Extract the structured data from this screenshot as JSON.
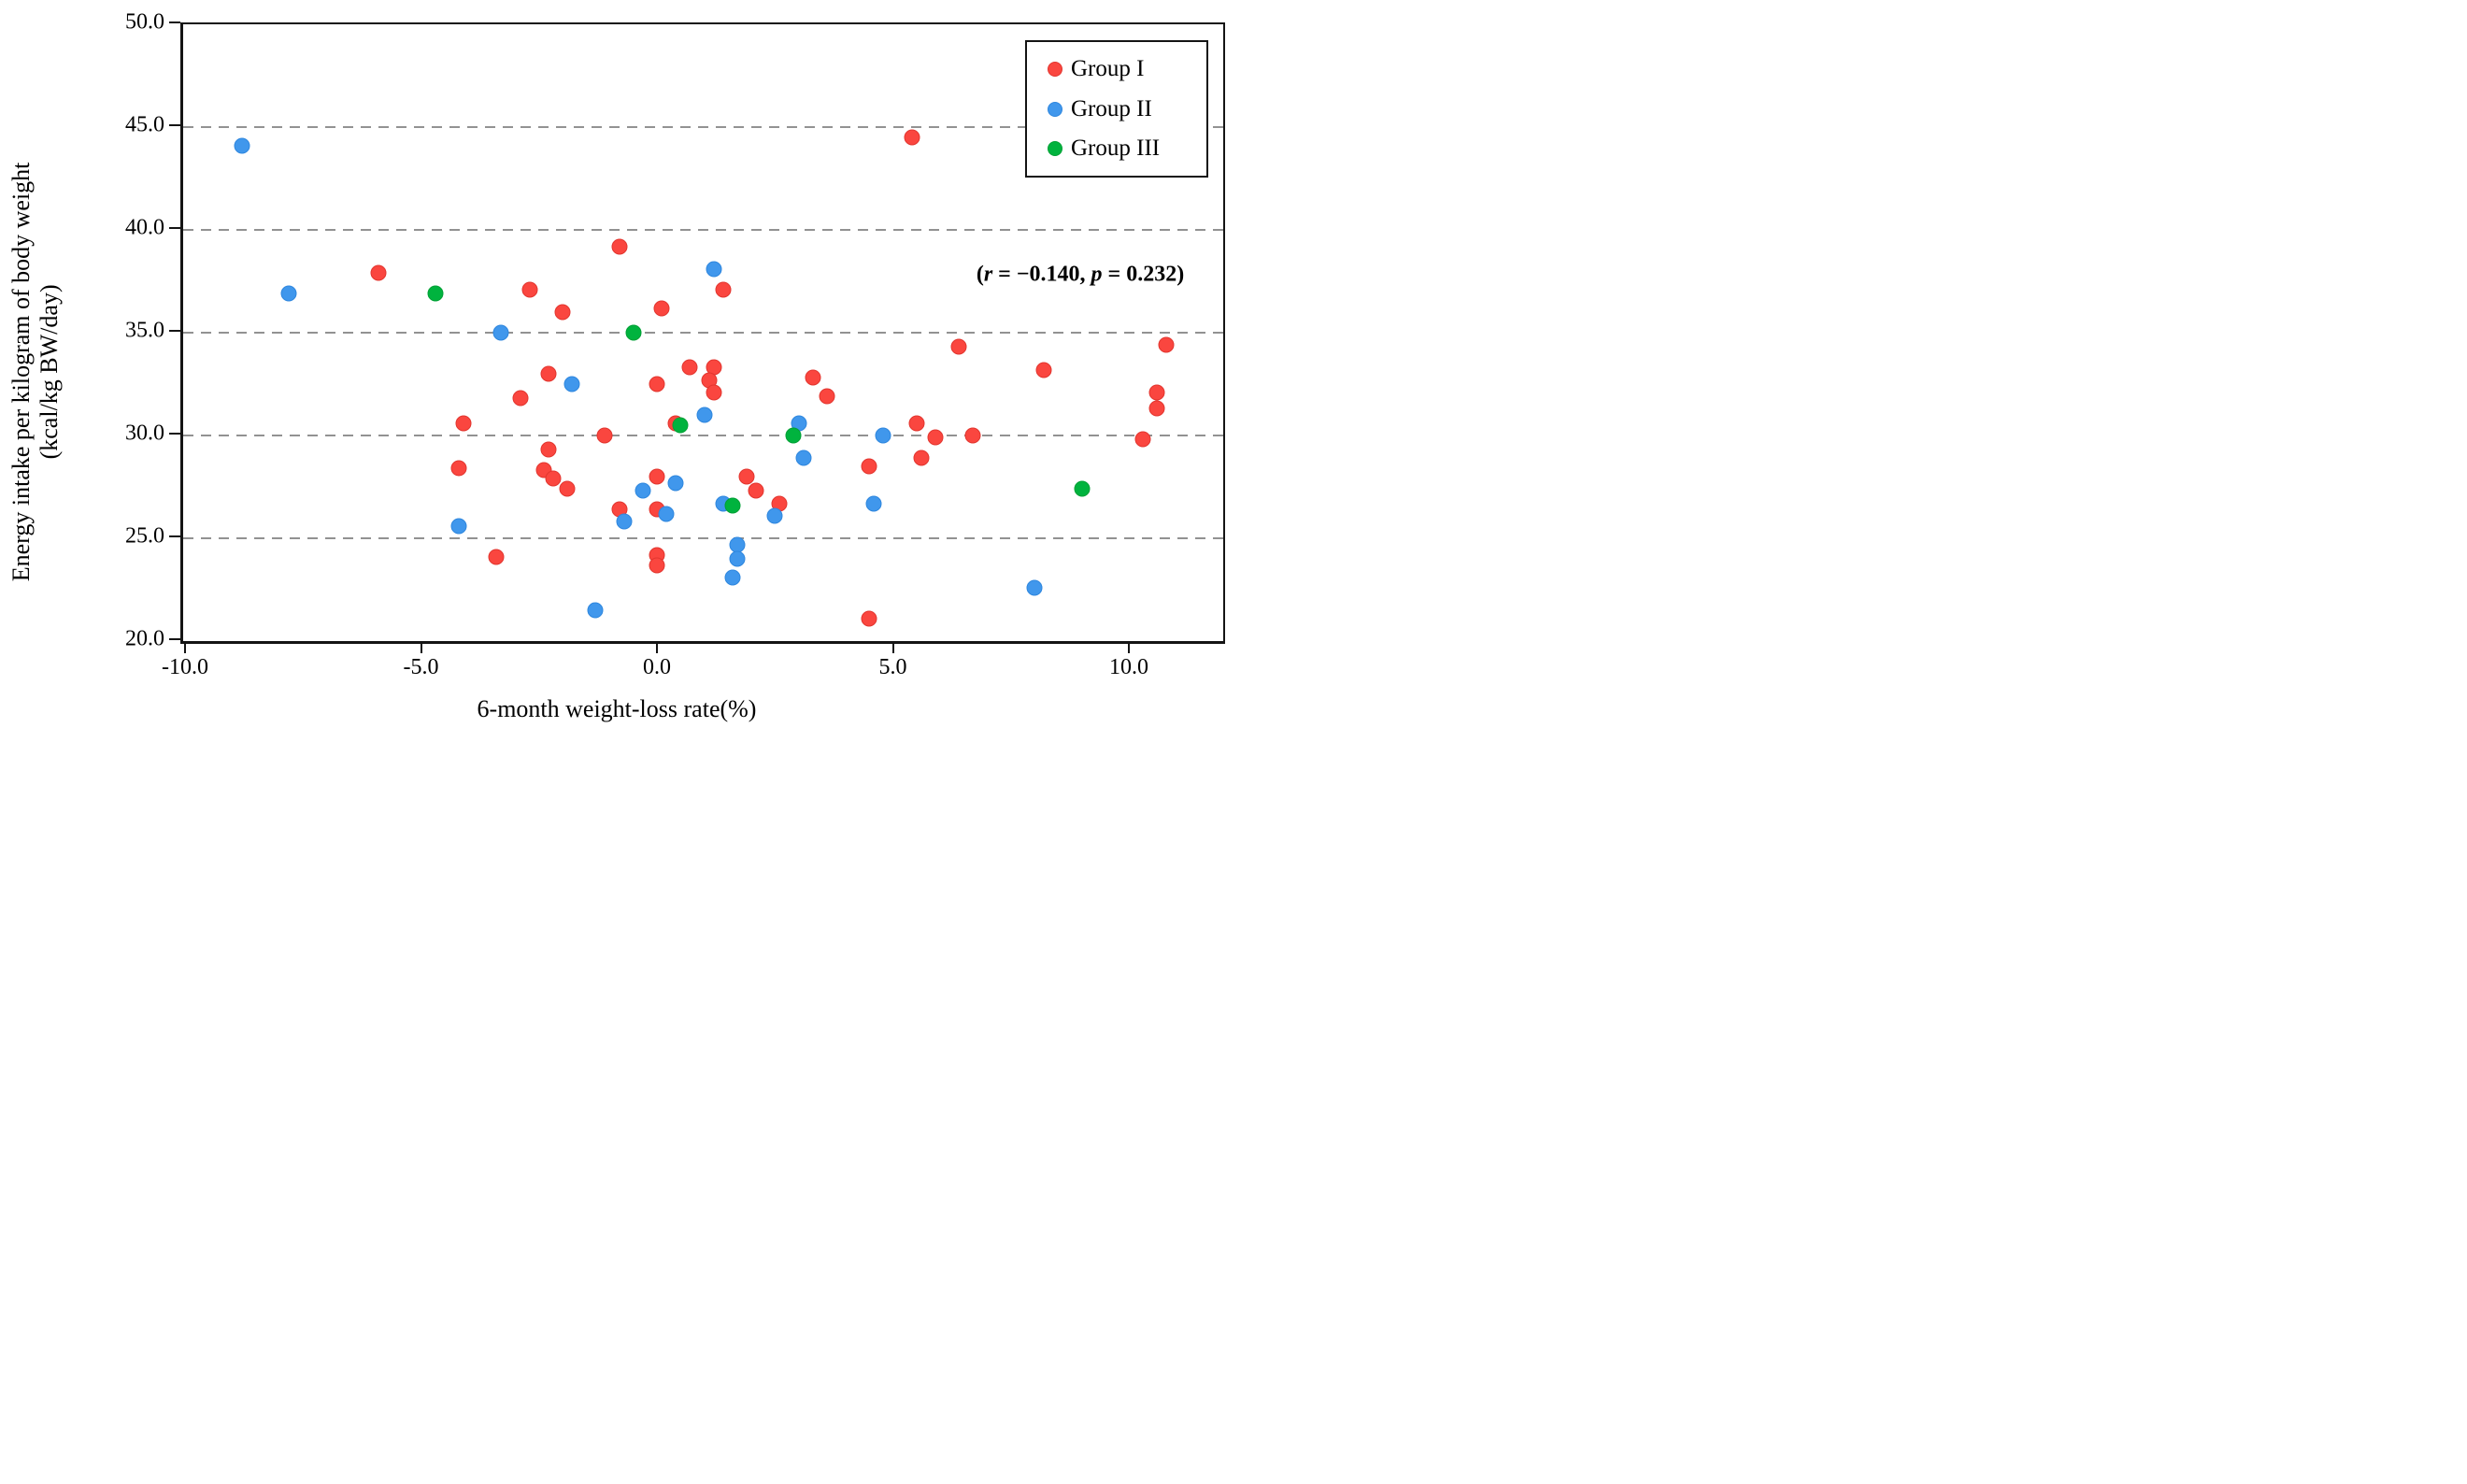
{
  "figure": {
    "y_axis_title_line1": "Energy intake per kilogram of body weight",
    "y_axis_title_line2": "(kcal/kg BW/day)",
    "x_axis_title": "6-month weight-loss rate(%)",
    "annotation": {
      "open": "(",
      "r_symbol": "r",
      "r_value_text": " = −0.140, ",
      "p_symbol": "p",
      "p_value_text": " = 0.232)"
    }
  },
  "chart_data": {
    "type": "scatter",
    "title": "",
    "xlabel": "6-month weight-loss rate(%)",
    "ylabel": "Energy intake per kilogram of body weight (kcal/kg BW/day)",
    "xlim": [
      -10.04,
      12.0
    ],
    "ylim": [
      20.0,
      50.0
    ],
    "grid": "horizontal-dashed",
    "gridlines_y": [
      25,
      30,
      35,
      40,
      45
    ],
    "x_ticks": [
      {
        "value": -10,
        "label": "-10.0"
      },
      {
        "value": -5,
        "label": "-5.0"
      },
      {
        "value": 0,
        "label": "0.0"
      },
      {
        "value": 5,
        "label": "5.0"
      },
      {
        "value": 10,
        "label": "10.0"
      }
    ],
    "y_ticks": [
      {
        "value": 50,
        "label": "50.0"
      },
      {
        "value": 45,
        "label": "45.0"
      },
      {
        "value": 40,
        "label": "40.0"
      },
      {
        "value": 35,
        "label": "35.0"
      },
      {
        "value": 30,
        "label": "30.0"
      },
      {
        "value": 25,
        "label": "25.0"
      },
      {
        "value": 20,
        "label": "20.0"
      }
    ],
    "legend_position": "top-right",
    "annotation_text": "(r = −0.140, p = 0.232)",
    "series": [
      {
        "name": "Group I",
        "color": "#FA463F",
        "stroke": "#E2362F",
        "points": [
          [
            5.4,
            44.5
          ],
          [
            -0.8,
            39.2
          ],
          [
            -5.9,
            37.9
          ],
          [
            -2.7,
            37.1
          ],
          [
            1.4,
            37.1
          ],
          [
            0.1,
            36.2
          ],
          [
            -2.0,
            36.0
          ],
          [
            10.8,
            34.4
          ],
          [
            6.4,
            34.3
          ],
          [
            0.7,
            33.3
          ],
          [
            1.2,
            33.3
          ],
          [
            8.2,
            33.2
          ],
          [
            -2.3,
            33.0
          ],
          [
            3.3,
            32.8
          ],
          [
            1.1,
            32.7
          ],
          [
            0.0,
            32.5
          ],
          [
            1.2,
            32.1
          ],
          [
            10.6,
            32.1
          ],
          [
            3.6,
            31.9
          ],
          [
            -2.9,
            31.8
          ],
          [
            10.6,
            31.3
          ],
          [
            -4.1,
            30.6
          ],
          [
            5.5,
            30.6
          ],
          [
            0.4,
            30.6
          ],
          [
            -1.1,
            30.0
          ],
          [
            6.7,
            30.0
          ],
          [
            5.9,
            29.9
          ],
          [
            10.3,
            29.8
          ],
          [
            -2.3,
            29.3
          ],
          [
            5.6,
            28.9
          ],
          [
            4.5,
            28.5
          ],
          [
            -4.2,
            28.4
          ],
          [
            -2.4,
            28.3
          ],
          [
            1.9,
            28.0
          ],
          [
            0.0,
            28.0
          ],
          [
            -2.2,
            27.9
          ],
          [
            -1.9,
            27.4
          ],
          [
            2.1,
            27.3
          ],
          [
            2.6,
            26.7
          ],
          [
            -0.8,
            26.4
          ],
          [
            0.0,
            26.4
          ],
          [
            -3.4,
            24.1
          ],
          [
            0.0,
            24.2
          ],
          [
            0.0,
            23.7
          ],
          [
            4.5,
            21.1
          ]
        ]
      },
      {
        "name": "Group II",
        "color": "#4097EC",
        "stroke": "#2F87DE",
        "points": [
          [
            -8.8,
            44.1
          ],
          [
            1.2,
            38.1
          ],
          [
            -7.8,
            36.9
          ],
          [
            -3.3,
            35.0
          ],
          [
            -1.8,
            32.5
          ],
          [
            1.0,
            31.0
          ],
          [
            3.0,
            30.6
          ],
          [
            4.8,
            30.0
          ],
          [
            3.1,
            28.9
          ],
          [
            0.4,
            27.7
          ],
          [
            -0.3,
            27.3
          ],
          [
            1.4,
            26.7
          ],
          [
            4.6,
            26.7
          ],
          [
            -0.7,
            25.8
          ],
          [
            -4.2,
            25.6
          ],
          [
            0.2,
            26.2
          ],
          [
            2.5,
            26.1
          ],
          [
            1.7,
            24.7
          ],
          [
            1.7,
            24.0
          ],
          [
            1.6,
            23.1
          ],
          [
            8.0,
            22.6
          ],
          [
            -1.3,
            21.5
          ]
        ]
      },
      {
        "name": "Group III",
        "color": "#00B33E",
        "stroke": "#00A035",
        "points": [
          [
            -4.7,
            36.9
          ],
          [
            -0.5,
            35.0
          ],
          [
            0.5,
            30.5
          ],
          [
            2.9,
            30.0
          ],
          [
            1.6,
            26.6
          ],
          [
            9.0,
            27.4
          ]
        ]
      }
    ]
  }
}
